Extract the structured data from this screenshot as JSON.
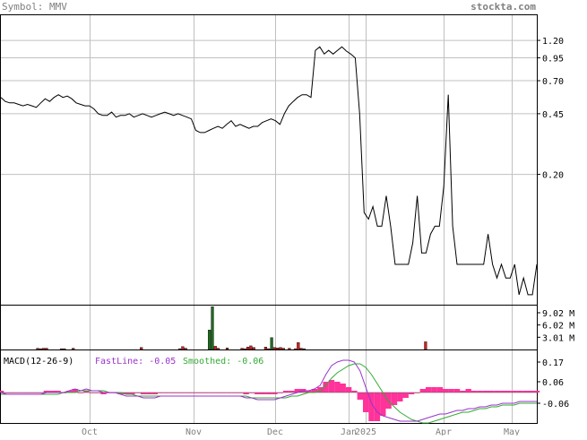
{
  "header": {
    "symbol_label": "Symbol: MMV",
    "brand": "stockta.com"
  },
  "colors": {
    "background": "#ffffff",
    "frame": "#000000",
    "grid": "#c0c0c0",
    "header_text": "#808080",
    "price_line": "#000000",
    "volume_up": "#1f6b1f",
    "volume_down": "#cc2222",
    "macd_fast": "#9933cc",
    "macd_smoothed": "#33aa33",
    "macd_histogram": "#ff3399"
  },
  "chart_data": [
    {
      "type": "line",
      "title": "",
      "y_scale": "log",
      "x_tick_labels": [
        "Oct",
        "Nov",
        "Dec",
        "Jan",
        "2025",
        "Apr",
        "May"
      ],
      "y_tick_labels": [
        "1.20",
        "0.95",
        "0.70",
        "0.45",
        "0.20"
      ],
      "y_ticks": [
        1.2,
        0.95,
        0.7,
        0.45,
        0.2
      ],
      "ylim": [
        0.035,
        1.7
      ],
      "series": [
        {
          "values": [
            0.56,
            0.53,
            0.52,
            0.52,
            0.51,
            0.5,
            0.51,
            0.5,
            0.49,
            0.52,
            0.55,
            0.53,
            0.56,
            0.58,
            0.56,
            0.57,
            0.55,
            0.52,
            0.51,
            0.5,
            0.5,
            0.48,
            0.45,
            0.44,
            0.44,
            0.46,
            0.43,
            0.44,
            0.44,
            0.45,
            0.43,
            0.44,
            0.45,
            0.44,
            0.43,
            0.44,
            0.45,
            0.46,
            0.45,
            0.44,
            0.45,
            0.44,
            0.43,
            0.42,
            0.36,
            0.35,
            0.35,
            0.36,
            0.37,
            0.38,
            0.37,
            0.39,
            0.41,
            0.38,
            0.39,
            0.38,
            0.37,
            0.38,
            0.38,
            0.4,
            0.41,
            0.42,
            0.41,
            0.39,
            0.45,
            0.5,
            0.53,
            0.56,
            0.58,
            0.58,
            0.56,
            1.05,
            1.1,
            1.0,
            1.05,
            1.0,
            1.05,
            1.1,
            1.04,
            1.0,
            0.95,
            0.45,
            0.12,
            0.11,
            0.13,
            0.1,
            0.1,
            0.15,
            0.1,
            0.06,
            0.06,
            0.06,
            0.06,
            0.08,
            0.15,
            0.07,
            0.07,
            0.09,
            0.1,
            0.1,
            0.17,
            0.58,
            0.1,
            0.06,
            0.06,
            0.06,
            0.06,
            0.06,
            0.06,
            0.06,
            0.09,
            0.06,
            0.05,
            0.06,
            0.05,
            0.05,
            0.06,
            0.04,
            0.05,
            0.04,
            0.04,
            0.06
          ]
        }
      ]
    },
    {
      "type": "bar",
      "title": "",
      "y_tick_labels": [
        "9.02 M",
        "6.02 M",
        "3.01 M"
      ],
      "y_ticks": [
        9.02,
        6.02,
        3.01
      ],
      "ylim": [
        0,
        11
      ],
      "values": [
        0,
        0,
        0,
        0,
        0,
        0,
        0,
        0,
        0,
        0,
        0,
        0,
        0.3,
        0.2,
        0.3,
        0.3,
        0,
        0,
        0,
        0,
        0.2,
        0.2,
        0,
        0,
        0.3,
        0,
        0,
        0,
        0,
        0,
        0,
        0,
        0,
        0,
        0,
        0,
        0,
        0,
        0,
        0,
        0,
        0,
        0,
        0,
        0,
        0,
        0,
        0.5,
        0,
        0,
        0,
        0,
        0,
        0,
        0,
        0,
        0,
        0,
        0,
        0,
        0.2,
        0.7,
        0.3,
        0,
        0,
        0,
        0,
        0,
        0,
        0,
        4.8,
        10.5,
        0.8,
        0.3,
        0,
        0,
        0.4,
        0,
        0,
        0,
        0,
        0.3,
        0.2,
        0.6,
        0.9,
        0.5,
        0,
        0,
        0,
        0.6,
        0.2,
        2.9,
        0.5,
        0.4,
        0.5,
        0.3,
        0,
        0.3,
        0,
        0.2,
        1.7,
        0.3,
        0.2,
        0,
        0,
        0,
        0,
        0,
        0,
        0,
        0,
        0,
        0,
        0,
        0,
        0,
        0,
        0,
        0,
        0,
        0,
        0,
        0,
        0,
        0,
        0,
        0,
        0,
        0,
        0,
        0,
        0,
        0,
        0,
        0,
        0,
        0,
        0,
        0,
        0,
        0,
        0,
        0,
        1.9,
        0,
        0,
        0,
        0,
        0,
        0,
        0,
        0,
        0,
        0,
        0,
        0,
        0,
        0,
        0,
        0,
        0,
        0,
        0,
        0,
        0,
        0,
        0,
        0,
        0,
        0,
        0,
        0,
        0,
        0,
        0,
        0,
        0,
        0,
        0,
        0,
        0
      ],
      "up_days": [
        57,
        58,
        70,
        71,
        91,
        137
      ]
    },
    {
      "type": "line",
      "title": "MACD(12-26-9)",
      "legend": [
        {
          "label": "FastLine: -0.05"
        },
        {
          "label": "Smoothed: -0.06"
        }
      ],
      "y_tick_labels": [
        "0.17",
        "0.06",
        "-0.06"
      ],
      "y_ticks": [
        0.17,
        0.06,
        -0.06
      ],
      "ylim": [
        -0.17,
        0.24
      ],
      "series": [
        {
          "name": "FastLine",
          "values": [
            0.0,
            -0.01,
            -0.01,
            -0.01,
            -0.01,
            -0.01,
            -0.01,
            -0.01,
            0.0,
            0.0,
            0.0,
            0.0,
            0.01,
            0.02,
            0.01,
            0.02,
            0.01,
            0.01,
            0.0,
            0.0,
            0.0,
            -0.01,
            -0.02,
            -0.02,
            -0.02,
            -0.03,
            -0.03,
            -0.03,
            -0.02,
            -0.02,
            -0.02,
            -0.02,
            -0.02,
            -0.02,
            -0.02,
            -0.02,
            -0.02,
            -0.02,
            -0.02,
            -0.02,
            -0.02,
            -0.02,
            -0.02,
            -0.03,
            -0.03,
            -0.04,
            -0.04,
            -0.04,
            -0.04,
            -0.03,
            -0.02,
            -0.01,
            0.0,
            0.01,
            0.01,
            0.02,
            0.04,
            0.1,
            0.15,
            0.17,
            0.18,
            0.18,
            0.17,
            0.12,
            0.03,
            -0.06,
            -0.11,
            -0.13,
            -0.14,
            -0.15,
            -0.16,
            -0.16,
            -0.16,
            -0.16,
            -0.15,
            -0.14,
            -0.13,
            -0.12,
            -0.12,
            -0.11,
            -0.1,
            -0.1,
            -0.09,
            -0.09,
            -0.08,
            -0.08,
            -0.07,
            -0.07,
            -0.06,
            -0.06,
            -0.06,
            -0.05,
            -0.05,
            -0.05,
            -0.05
          ]
        },
        {
          "name": "Smoothed",
          "values": [
            -0.01,
            -0.01,
            -0.01,
            -0.01,
            -0.01,
            -0.01,
            -0.01,
            -0.01,
            -0.01,
            -0.01,
            -0.01,
            0.0,
            0.0,
            0.0,
            0.01,
            0.01,
            0.01,
            0.01,
            0.01,
            0.0,
            0.0,
            0.0,
            -0.01,
            -0.01,
            -0.02,
            -0.02,
            -0.02,
            -0.02,
            -0.02,
            -0.02,
            -0.02,
            -0.02,
            -0.02,
            -0.02,
            -0.02,
            -0.02,
            -0.02,
            -0.02,
            -0.02,
            -0.02,
            -0.02,
            -0.02,
            -0.02,
            -0.02,
            -0.03,
            -0.03,
            -0.03,
            -0.03,
            -0.03,
            -0.03,
            -0.03,
            -0.02,
            -0.02,
            -0.01,
            0.0,
            0.0,
            0.01,
            0.04,
            0.08,
            0.11,
            0.13,
            0.15,
            0.16,
            0.16,
            0.14,
            0.1,
            0.05,
            0.0,
            -0.05,
            -0.08,
            -0.11,
            -0.13,
            -0.15,
            -0.16,
            -0.17,
            -0.17,
            -0.16,
            -0.15,
            -0.14,
            -0.13,
            -0.12,
            -0.11,
            -0.11,
            -0.1,
            -0.09,
            -0.09,
            -0.08,
            -0.08,
            -0.07,
            -0.07,
            -0.07,
            -0.06,
            -0.06,
            -0.06,
            -0.06
          ]
        }
      ]
    }
  ]
}
